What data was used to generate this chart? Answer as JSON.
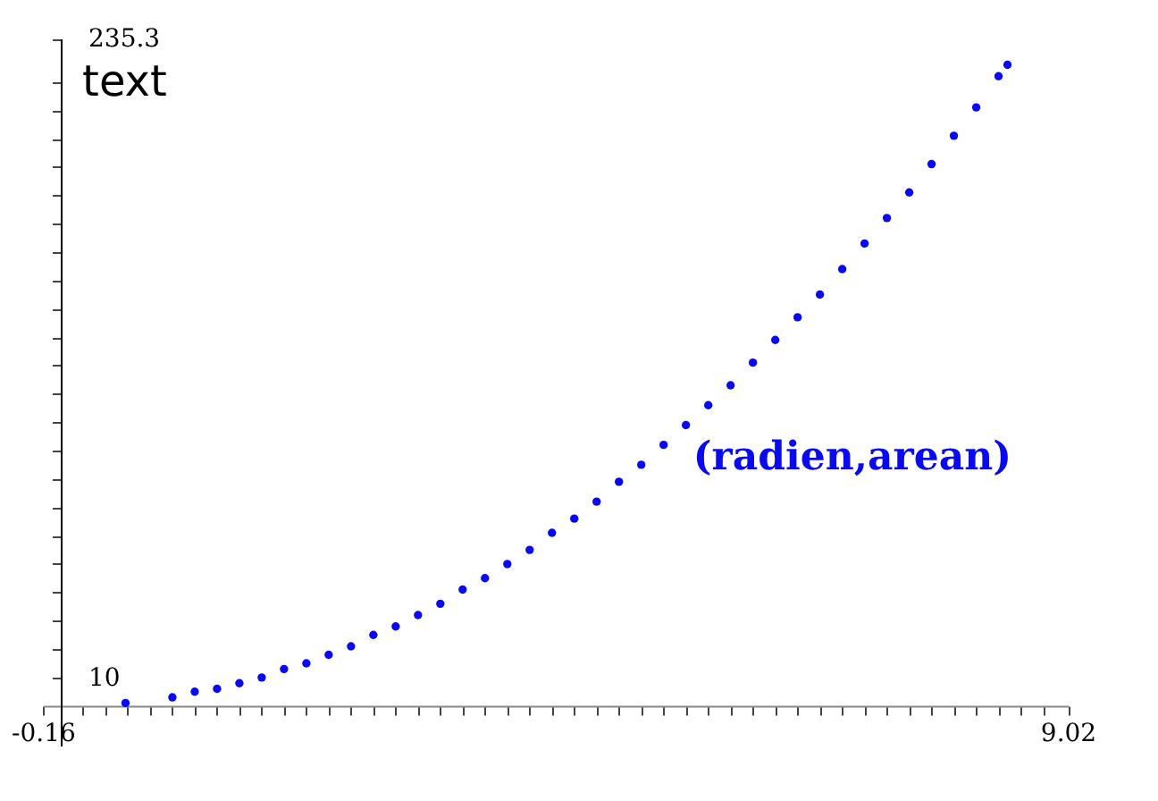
{
  "chart_data": {
    "type": "scatter",
    "title": "text",
    "grid": false,
    "marker": "circle",
    "x": [
      0.58,
      1.0,
      1.2,
      1.4,
      1.6,
      1.8,
      2.0,
      2.2,
      2.4,
      2.6,
      2.8,
      3.0,
      3.2,
      3.4,
      3.6,
      3.8,
      4.0,
      4.2,
      4.4,
      4.6,
      4.8,
      5.0,
      5.2,
      5.4,
      5.6,
      5.8,
      6.0,
      6.2,
      6.4,
      6.6,
      6.8,
      7.0,
      7.2,
      7.4,
      7.6,
      7.8,
      8.0,
      8.2,
      8.4,
      8.48
    ],
    "series": [
      {
        "name": "(radien,arean)",
        "color": "#0a0af0",
        "values": [
          1,
          3,
          5,
          6,
          8,
          10,
          13,
          15,
          18,
          21,
          25,
          28,
          32,
          36,
          41,
          45,
          50,
          55,
          61,
          66,
          72,
          79,
          85,
          92,
          99,
          106,
          113,
          121,
          129,
          137,
          145,
          154,
          163,
          172,
          181,
          191,
          201,
          211,
          222,
          226
        ]
      }
    ],
    "xlim": [
      -0.16,
      9.02
    ],
    "xticks": [
      {
        "value": -0.16,
        "label": "-0.16"
      },
      {
        "value": 0.2,
        "label": null
      },
      {
        "value": 0.4,
        "label": null
      },
      {
        "value": 0.6,
        "label": null
      },
      {
        "value": 0.8,
        "label": null
      },
      {
        "value": 1.0,
        "label": null
      },
      {
        "value": 1.2,
        "label": null
      },
      {
        "value": 1.4,
        "label": null
      },
      {
        "value": 1.6,
        "label": null
      },
      {
        "value": 1.8,
        "label": null
      },
      {
        "value": 2.0,
        "label": null
      },
      {
        "value": 2.2,
        "label": null
      },
      {
        "value": 2.4,
        "label": null
      },
      {
        "value": 2.6,
        "label": null
      },
      {
        "value": 2.8,
        "label": null
      },
      {
        "value": 3.0,
        "label": null
      },
      {
        "value": 3.2,
        "label": null
      },
      {
        "value": 3.4,
        "label": null
      },
      {
        "value": 3.6,
        "label": null
      },
      {
        "value": 3.8,
        "label": null
      },
      {
        "value": 4.0,
        "label": null
      },
      {
        "value": 4.2,
        "label": null
      },
      {
        "value": 4.4,
        "label": null
      },
      {
        "value": 4.6,
        "label": null
      },
      {
        "value": 4.8,
        "label": null
      },
      {
        "value": 5.0,
        "label": null
      },
      {
        "value": 5.2,
        "label": null
      },
      {
        "value": 5.4,
        "label": null
      },
      {
        "value": 5.6,
        "label": null
      },
      {
        "value": 5.8,
        "label": null
      },
      {
        "value": 6.0,
        "label": null
      },
      {
        "value": 6.2,
        "label": null
      },
      {
        "value": 6.4,
        "label": null
      },
      {
        "value": 6.6,
        "label": null
      },
      {
        "value": 6.8,
        "label": null
      },
      {
        "value": 7.0,
        "label": null
      },
      {
        "value": 7.2,
        "label": null
      },
      {
        "value": 7.4,
        "label": null
      },
      {
        "value": 7.6,
        "label": null
      },
      {
        "value": 7.8,
        "label": null
      },
      {
        "value": 8.0,
        "label": null
      },
      {
        "value": 8.2,
        "label": null
      },
      {
        "value": 8.4,
        "label": null
      },
      {
        "value": 8.6,
        "label": null
      },
      {
        "value": 8.8,
        "label": null
      },
      {
        "value": 9.02,
        "label": "9.02"
      }
    ],
    "ylim": [
      -14,
      235.3
    ],
    "yticks": [
      {
        "value": 10,
        "label": "10"
      },
      {
        "value": 20,
        "label": null
      },
      {
        "value": 30,
        "label": null
      },
      {
        "value": 40,
        "label": null
      },
      {
        "value": 50,
        "label": null
      },
      {
        "value": 60,
        "label": null
      },
      {
        "value": 70,
        "label": null
      },
      {
        "value": 80,
        "label": null
      },
      {
        "value": 90,
        "label": null
      },
      {
        "value": 100,
        "label": null
      },
      {
        "value": 110,
        "label": null
      },
      {
        "value": 120,
        "label": null
      },
      {
        "value": 130,
        "label": null
      },
      {
        "value": 140,
        "label": null
      },
      {
        "value": 150,
        "label": null
      },
      {
        "value": 160,
        "label": null
      },
      {
        "value": 170,
        "label": null
      },
      {
        "value": 180,
        "label": null
      },
      {
        "value": 190,
        "label": null
      },
      {
        "value": 200,
        "label": null
      },
      {
        "value": 210,
        "label": null
      },
      {
        "value": 220,
        "label": null
      },
      {
        "value": 235.3,
        "label": "235.3"
      }
    ]
  }
}
